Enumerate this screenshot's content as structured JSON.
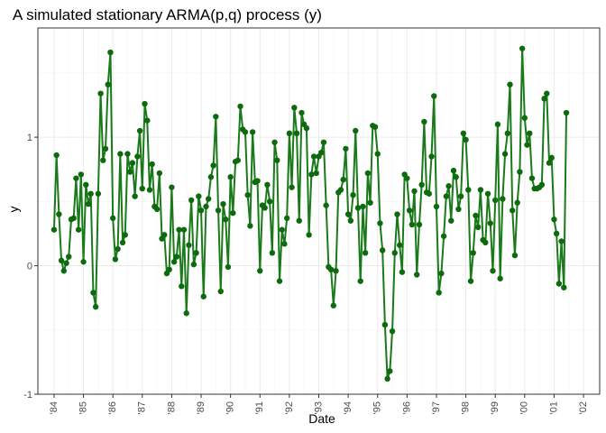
{
  "chart_data": {
    "type": "line",
    "title": "A simulated stationary ARMA(p,q) process (y)",
    "xlabel": "Date",
    "ylabel": "y",
    "xlim": [
      1983.45,
      2002.55
    ],
    "ylim": [
      -1.0,
      1.85
    ],
    "x_ticks": [
      {
        "value": 1984,
        "label": "'84"
      },
      {
        "value": 1985,
        "label": "'85"
      },
      {
        "value": 1986,
        "label": "'86"
      },
      {
        "value": 1987,
        "label": "'87"
      },
      {
        "value": 1988,
        "label": "'88"
      },
      {
        "value": 1989,
        "label": "'89"
      },
      {
        "value": 1990,
        "label": "'90"
      },
      {
        "value": 1991,
        "label": "'91"
      },
      {
        "value": 1992,
        "label": "'92"
      },
      {
        "value": 1993,
        "label": "'93"
      },
      {
        "value": 1994,
        "label": "'94"
      },
      {
        "value": 1995,
        "label": "'95"
      },
      {
        "value": 1996,
        "label": "'96"
      },
      {
        "value": 1997,
        "label": "'97"
      },
      {
        "value": 1998,
        "label": "'98"
      },
      {
        "value": 1999,
        "label": "'99"
      },
      {
        "value": 2000,
        "label": "'00"
      },
      {
        "value": 2001,
        "label": "'01"
      },
      {
        "value": 2002,
        "label": "'02"
      }
    ],
    "y_ticks": [
      {
        "value": -1,
        "label": "-1"
      },
      {
        "value": 0,
        "label": "0"
      },
      {
        "value": 1,
        "label": "1"
      }
    ],
    "grid": true,
    "line_color": "#1a7a1a",
    "point_color": "#0d6b0d",
    "series": [
      {
        "x_start": 1984.0,
        "x_step_months": 1,
        "values": [
          0.28,
          0.86,
          0.4,
          0.04,
          -0.04,
          0.02,
          0.07,
          0.36,
          0.37,
          0.68,
          0.28,
          0.71,
          0.03,
          0.63,
          0.48,
          0.56,
          -0.21,
          -0.32,
          0.56,
          1.34,
          0.82,
          0.91,
          1.41,
          1.66,
          0.37,
          0.05,
          0.13,
          0.87,
          0.18,
          0.24,
          0.87,
          0.73,
          0.8,
          0.54,
          0.85,
          1.05,
          0.6,
          1.26,
          1.13,
          0.59,
          0.79,
          0.46,
          0.44,
          0.72,
          0.21,
          0.24,
          -0.06,
          -0.03,
          0.61,
          0.03,
          0.07,
          0.28,
          -0.16,
          0.28,
          -0.37,
          0.16,
          0.51,
          0.01,
          0.1,
          0.54,
          0.43,
          -0.24,
          0.46,
          0.52,
          0.69,
          0.78,
          1.16,
          0.43,
          -0.2,
          0.48,
          0.36,
          -0.01,
          0.69,
          0.41,
          0.81,
          0.82,
          1.24,
          1.06,
          1.04,
          0.55,
          0.31,
          1.04,
          0.65,
          0.66,
          -0.04,
          0.47,
          0.45,
          0.63,
          0.5,
          0.1,
          0.96,
          0.82,
          -0.12,
          0.28,
          0.17,
          0.37,
          1.03,
          0.61,
          1.23,
          1.03,
          0.35,
          1.19,
          1.1,
          1.07,
          0.24,
          0.71,
          0.85,
          0.72,
          0.85,
          0.88,
          0.96,
          0.47,
          -0.01,
          -0.03,
          -0.31,
          -0.04,
          0.57,
          0.59,
          0.67,
          0.91,
          0.4,
          0.35,
          0.55,
          1.05,
          0.45,
          -0.12,
          0.46,
          0.1,
          0.72,
          0.49,
          1.09,
          1.08,
          0.87,
          0.33,
          0.12,
          -0.46,
          -0.88,
          -0.82,
          -0.51,
          0.1,
          0.4,
          0.16,
          -0.05,
          0.71,
          0.68,
          0.43,
          0.32,
          0.58,
          -0.07,
          0.32,
          0.63,
          1.12,
          0.57,
          0.56,
          0.85,
          1.32,
          0.46,
          -0.21,
          -0.06,
          0.23,
          0.54,
          0.62,
          0.35,
          0.74,
          0.69,
          0.44,
          0.54,
          1.03,
          0.98,
          0.59,
          -0.12,
          0.1,
          0.39,
          0.3,
          0.59,
          0.2,
          0.18,
          0.56,
          0.33,
          -0.04,
          0.51,
          1.1,
          -0.1,
          0.52,
          0.87,
          1.03,
          1.41,
          0.43,
          0.08,
          0.49,
          0.73,
          1.69,
          1.15,
          0.94,
          1.03,
          0.68,
          0.6,
          0.6,
          0.61,
          0.63,
          1.3,
          1.34,
          0.8,
          0.84,
          0.36,
          0.25,
          -0.14,
          0.19,
          -0.17,
          1.19
        ]
      }
    ]
  }
}
